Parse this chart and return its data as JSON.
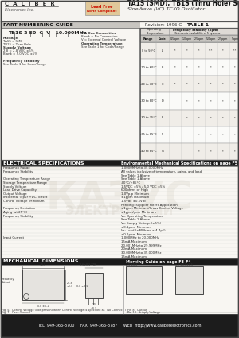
{
  "title_series": "TA1S (SMD), TB1S (Thru Hole) Series",
  "title_sub": "SineWave (VC) TCXO Oscillator",
  "company": "C  A  L  I  B  E  R",
  "company_sub": "Electronics Inc.",
  "lead_free_line1": "Lead Free",
  "lead_free_line2": "RoHS Compliant",
  "revision": "Revision: 1996-C",
  "table1_title": "TABLE 1",
  "part_numbering_title": "PART NUMBERING GUIDE",
  "part_example": "TB1S 2 50  C  V   10.000MHz",
  "elec_spec_title": "ELECTRICAL SPECIFICATIONS",
  "env_mech_title": "Environmental Mechanical Specifications on page F5",
  "mech_dim_title": "MECHANICAL DIMENSIONS",
  "marking_guide_title": "Marking Guide on page F3-F4",
  "footer": "TEL  949-366-8700     FAX  949-366-8787     WEB  http://www.caliberelectronics.com",
  "bg_color": "#f2f0ec",
  "white": "#ffffff",
  "dark_header_bg": "#222222",
  "section_gray": "#c8c5c0",
  "light_row": "#f5f3f0",
  "alt_row": "#eae8e4",
  "table_line": "#888888",
  "black_header": "#1a1a1a"
}
